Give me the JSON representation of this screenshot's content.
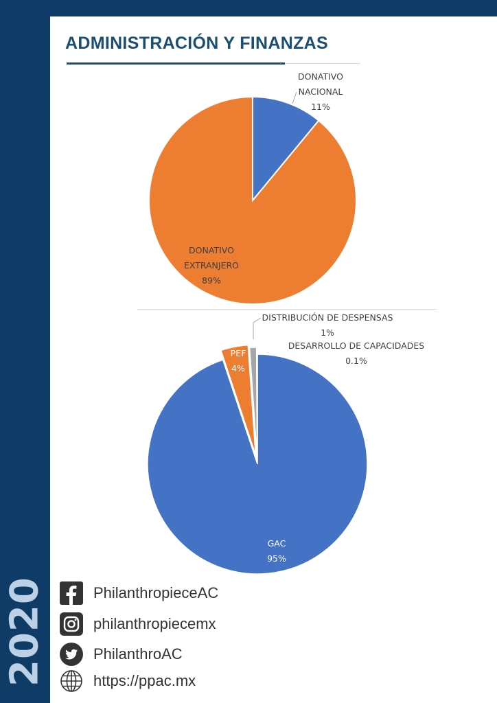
{
  "page": {
    "title": "ADMINISTRACIÓN Y FINANZAS",
    "year": "2020"
  },
  "colors": {
    "sidebar": "#0e3c66",
    "title": "#1b4f72",
    "blue_slice": "#4472c4",
    "orange_slice": "#ed7d31",
    "gray_slice": "#a5a5a5"
  },
  "chart_data": [
    {
      "type": "pie",
      "slices": [
        {
          "label_lines": [
            "DONATIVO",
            "NACIONAL"
          ],
          "value": 11,
          "value_label": "11%",
          "color": "#4472c4"
        },
        {
          "label_lines": [
            "DONATIVO",
            "EXTRANJERO"
          ],
          "value": 89,
          "value_label": "89%",
          "color": "#ed7d31"
        }
      ]
    },
    {
      "type": "pie",
      "slices": [
        {
          "label_lines": [
            "GAC"
          ],
          "value": 95,
          "value_label": "95%",
          "color": "#4472c4"
        },
        {
          "label_lines": [
            "PEF"
          ],
          "value": 4,
          "value_label": "4%",
          "color": "#ed7d31"
        },
        {
          "label_lines": [
            "DISTRIBUCIÓN DE DESPENSAS"
          ],
          "value": 1,
          "value_label": "1%",
          "color": "#a5a5a5"
        },
        {
          "label_lines": [
            "DESARROLLO DE CAPACIDADES"
          ],
          "value": 0.1,
          "value_label": "0.1%",
          "color": "#ffc000"
        }
      ]
    }
  ],
  "social": [
    {
      "icon": "facebook-icon",
      "text": "PhilanthropieceAC"
    },
    {
      "icon": "instagram-icon",
      "text": "philanthropiecemx"
    },
    {
      "icon": "twitter-icon",
      "text": "PhilanthroAC"
    },
    {
      "icon": "globe-icon",
      "text": "https://ppac.mx"
    }
  ]
}
